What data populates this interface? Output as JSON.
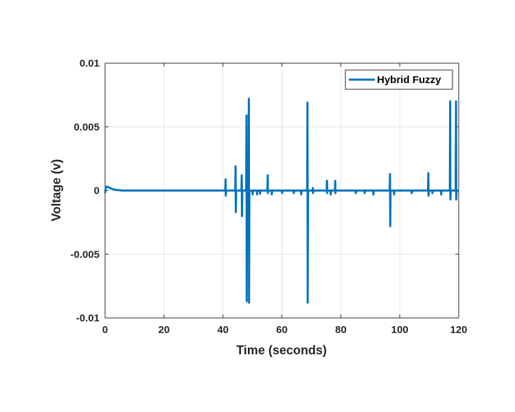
{
  "chart_data": {
    "type": "line",
    "title": "",
    "xlabel": "Time (seconds)",
    "ylabel": "Voltage (v)",
    "xlim": [
      0,
      120
    ],
    "ylim": [
      -0.01,
      0.01
    ],
    "xticks": [
      0,
      20,
      40,
      60,
      80,
      100,
      120
    ],
    "xtick_labels": [
      "0",
      "20",
      "40",
      "60",
      "80",
      "100",
      "120"
    ],
    "yticks": [
      0.01,
      0.005,
      0,
      -0.005,
      -0.01
    ],
    "ytick_labels": [
      "0.01",
      "0.005",
      "0",
      "-0.005",
      "-0.01"
    ],
    "grid": true,
    "legend": {
      "placement": "top-right",
      "entries": [
        "Hybrid Fuzzy"
      ]
    },
    "series": [
      {
        "name": "Hybrid Fuzzy",
        "color": "#0072BD",
        "transient": [
          [
            0,
            -0.0002
          ],
          [
            0.3,
            0.0003
          ],
          [
            1,
            0.00028
          ],
          [
            2,
            0.00016
          ],
          [
            3,
            8e-05
          ],
          [
            4,
            4e-05
          ],
          [
            6,
            0.0
          ]
        ],
        "spikes_t_max_min": [
          [
            40.9,
            0.00088,
            -0.0004
          ],
          [
            44.3,
            0.0019,
            -0.0017
          ],
          [
            46.4,
            0.0012,
            -0.002
          ],
          [
            48.0,
            0.0059,
            -0.0087
          ],
          [
            48.8,
            0.0072,
            -0.0088
          ],
          [
            50,
            0,
            -0.0003
          ],
          [
            51.5,
            0,
            -0.0003
          ],
          [
            52.5,
            0,
            -0.00025
          ],
          [
            55.2,
            0.0012,
            -0.0002
          ],
          [
            56.5,
            0,
            -0.0003
          ],
          [
            60,
            0,
            -0.0002
          ],
          [
            64,
            0,
            -0.0002
          ],
          [
            66.5,
            0,
            -0.0003
          ],
          [
            68.7,
            0.0069,
            -0.0088
          ],
          [
            70.5,
            0.0002,
            -0.0002
          ],
          [
            75.3,
            0.00077,
            -0.0002
          ],
          [
            76.5,
            0,
            -0.0003
          ],
          [
            78.1,
            0.00077,
            -0.0002
          ],
          [
            85,
            0,
            -0.0002
          ],
          [
            88,
            0,
            -0.0002
          ],
          [
            91,
            0,
            -0.0003
          ],
          [
            96.7,
            0.0013,
            -0.0028
          ],
          [
            98,
            0,
            -0.0003
          ],
          [
            104,
            0,
            -0.0002
          ],
          [
            109.7,
            0.00136,
            -0.0004
          ],
          [
            111,
            0,
            -0.0002
          ],
          [
            114,
            0,
            -0.0003
          ],
          [
            117.1,
            0.007,
            -0.0007
          ],
          [
            119.1,
            0.007,
            -0.0007
          ]
        ],
        "end": [
          120,
          0.0
        ]
      }
    ]
  }
}
